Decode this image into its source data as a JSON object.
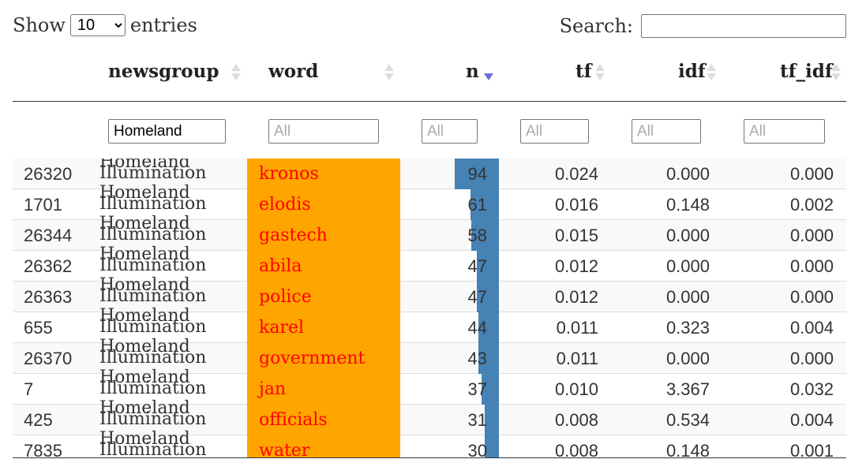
{
  "controls": {
    "show_label": "Show",
    "entries_value": "10",
    "entries_label": "entries",
    "search_label": "Search:",
    "search_value": ""
  },
  "columns": {
    "newsgroup": "newsgroup",
    "word": "word",
    "n": "n",
    "tf": "tf",
    "idf": "idf",
    "tf_idf": "tf_idf"
  },
  "filters": {
    "newsgroup_value": "Homeland",
    "word_placeholder": "All",
    "n_placeholder": "All",
    "tf_placeholder": "All",
    "idf_placeholder": "All",
    "tf_idf_placeholder": "All"
  },
  "colors": {
    "word_bg": "#ffa500",
    "word_text": "#ff0000",
    "n_bar": "#4682b4"
  },
  "n_max": 94,
  "rows": [
    {
      "id": "26320",
      "ng1": "Homeland",
      "ng2": "Illumination",
      "word": "kronos",
      "n": 94,
      "n_text": "94",
      "tf": "0.024",
      "idf": "0.000",
      "tf_idf": "0.000"
    },
    {
      "id": "1701",
      "ng1": "Homeland",
      "ng2": "Illumination",
      "word": "elodis",
      "n": 61,
      "n_text": "61",
      "tf": "0.016",
      "idf": "0.148",
      "tf_idf": "0.002"
    },
    {
      "id": "26344",
      "ng1": "Homeland",
      "ng2": "Illumination",
      "word": "gastech",
      "n": 58,
      "n_text": "58",
      "tf": "0.015",
      "idf": "0.000",
      "tf_idf": "0.000"
    },
    {
      "id": "26362",
      "ng1": "Homeland",
      "ng2": "Illumination",
      "word": "abila",
      "n": 47,
      "n_text": "47",
      "tf": "0.012",
      "idf": "0.000",
      "tf_idf": "0.000"
    },
    {
      "id": "26363",
      "ng1": "Homeland",
      "ng2": "Illumination",
      "word": "police",
      "n": 47,
      "n_text": "47",
      "tf": "0.012",
      "idf": "0.000",
      "tf_idf": "0.000"
    },
    {
      "id": "655",
      "ng1": "Homeland",
      "ng2": "Illumination",
      "word": "karel",
      "n": 44,
      "n_text": "44",
      "tf": "0.011",
      "idf": "0.323",
      "tf_idf": "0.004"
    },
    {
      "id": "26370",
      "ng1": "Homeland",
      "ng2": "Illumination",
      "word": "government",
      "n": 43,
      "n_text": "43",
      "tf": "0.011",
      "idf": "0.000",
      "tf_idf": "0.000"
    },
    {
      "id": "7",
      "ng1": "Homeland",
      "ng2": "Illumination",
      "word": "jan",
      "n": 37,
      "n_text": "37",
      "tf": "0.010",
      "idf": "3.367",
      "tf_idf": "0.032"
    },
    {
      "id": "425",
      "ng1": "Homeland",
      "ng2": "Illumination",
      "word": "officials",
      "n": 31,
      "n_text": "31",
      "tf": "0.008",
      "idf": "0.534",
      "tf_idf": "0.004"
    },
    {
      "id": "7835",
      "ng1": "Homeland",
      "ng2": "Illumination",
      "word": "water",
      "n": 30,
      "n_text": "30",
      "tf": "0.008",
      "idf": "0.148",
      "tf_idf": "0.001"
    }
  ]
}
